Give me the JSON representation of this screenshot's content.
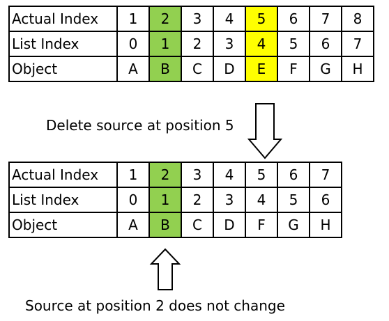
{
  "before": {
    "rows": [
      {
        "label": "Actual Index",
        "values": [
          "1",
          "2",
          "3",
          "4",
          "5",
          "6",
          "7",
          "8"
        ]
      },
      {
        "label": "List Index",
        "values": [
          "0",
          "1",
          "2",
          "3",
          "4",
          "5",
          "6",
          "7"
        ]
      },
      {
        "label": "Object",
        "values": [
          "A",
          "B",
          "C",
          "D",
          "E",
          "F",
          "G",
          "H"
        ]
      }
    ]
  },
  "after": {
    "rows": [
      {
        "label": "Actual Index",
        "values": [
          "1",
          "2",
          "3",
          "4",
          "5",
          "6",
          "7"
        ]
      },
      {
        "label": "List Index",
        "values": [
          "0",
          "1",
          "2",
          "3",
          "4",
          "5",
          "6"
        ]
      },
      {
        "label": "Object",
        "values": [
          "A",
          "B",
          "C",
          "D",
          "F",
          "G",
          "H"
        ]
      }
    ]
  },
  "captions": {
    "delete": "Delete source at position 5",
    "keep": "Source at position 2 does not change"
  },
  "colors": {
    "kept_highlight": "#92d050",
    "deleted_highlight": "#ffff00",
    "border": "#000000"
  }
}
